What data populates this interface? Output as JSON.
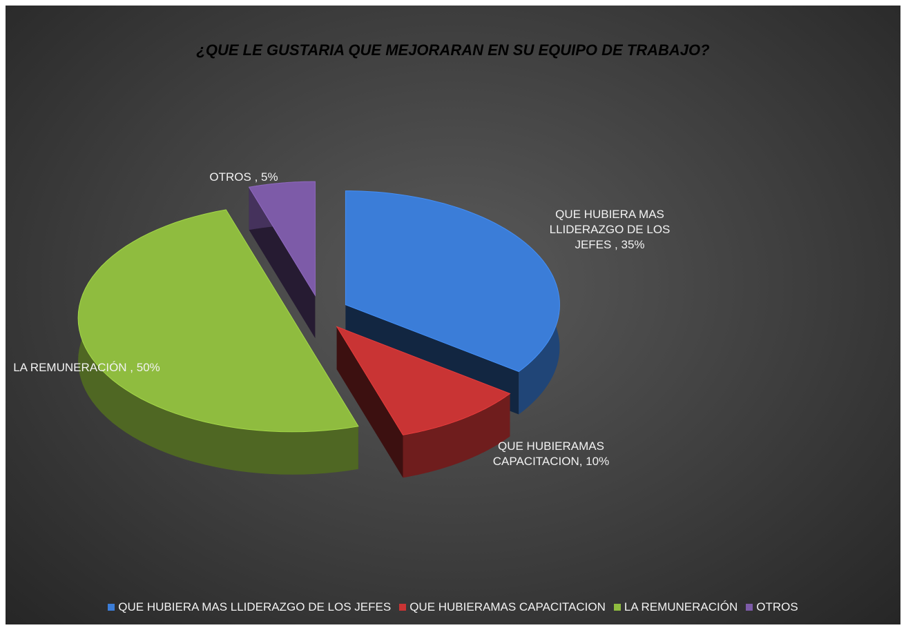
{
  "chart_data": {
    "type": "pie",
    "title": "¿QUE LE GUSTARIA QUE MEJORARAN EN SU EQUIPO DE TRABAJO?",
    "categories": [
      "QUE HUBIERA MAS LLIDERAZGO DE LOS JEFES",
      "QUE HUBIERAMAS CAPACITACION",
      "LA REMUNERACIÓN",
      "OTROS"
    ],
    "values": [
      35,
      10,
      50,
      5
    ],
    "value_labels": [
      "QUE HUBIERA MAS LLIDERAZGO DE LOS JEFES , 35%",
      "QUE HUBIERAMAS CAPACITACION, 10%",
      "LA REMUNERACIÓN , 50%",
      "OTROS , 5%"
    ],
    "colors": [
      "#3b7dd8",
      "#c93434",
      "#8fbc3f",
      "#7d5ba8"
    ],
    "legend": "bottom"
  }
}
